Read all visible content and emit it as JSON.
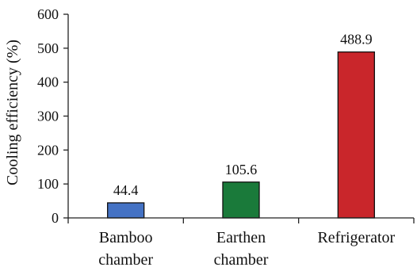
{
  "chart_data": {
    "type": "bar",
    "title": "",
    "xlabel": "",
    "ylabel": "Cooling efficiency  (%)",
    "ylim": [
      0,
      600
    ],
    "yticks": [
      0,
      100,
      200,
      300,
      400,
      500,
      600
    ],
    "grid": false,
    "legend": "none",
    "categories": [
      [
        "Bamboo",
        "chamber"
      ],
      [
        "Earthen",
        "chamber"
      ],
      [
        "Refrigerator"
      ]
    ],
    "values": [
      44.4,
      105.6,
      488.9
    ],
    "data_labels": [
      "44.4",
      "105.6",
      "488.9"
    ],
    "colors": [
      "#4472c4",
      "#1a7a3a",
      "#c9262b"
    ]
  }
}
